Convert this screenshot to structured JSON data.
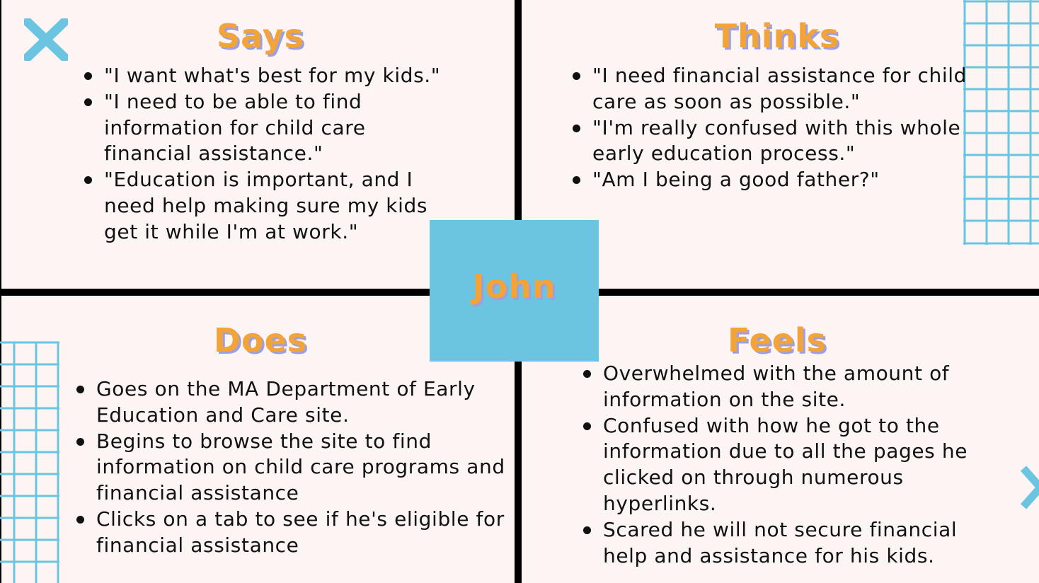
{
  "center": {
    "name": "John"
  },
  "quadrants": {
    "says": {
      "title": "Says",
      "items": [
        "\"I want what's best for my kids.\"",
        "\"I need to be able to find information for child care financial assistance.\"",
        "\"Education is important, and I need help making sure my kids get it while I'm at work.\""
      ]
    },
    "thinks": {
      "title": "Thinks",
      "items": [
        "\"I need financial assistance for child care as soon as possible.\"",
        "\"I'm really confused with this whole early education process.\"",
        "\"Am I being a good father?\""
      ]
    },
    "does": {
      "title": "Does",
      "items": [
        "Goes on the MA Department of Early Education and Care site.",
        "Begins to browse the site to find information on child care programs and financial assistance",
        "Clicks on a tab to see if he's eligible for financial assistance"
      ]
    },
    "feels": {
      "title": "Feels",
      "items": [
        "Overwhelmed with the amount of information on the site.",
        "Confused with how he got to the information due to all the pages he clicked on through numerous hyperlinks.",
        "Scared he will not secure financial help and assistance for his kids."
      ]
    }
  },
  "colors": {
    "background": "#fdf5f3",
    "title": "#f2a33a",
    "title_shadow": "#9c9fe0",
    "center_box": "#6bc5e1",
    "decoration": "#6bc5e1",
    "divider": "#000000"
  },
  "decorations": [
    "x-mark-icon",
    "grid-pattern-top-right",
    "grid-pattern-bottom-left",
    "chevron-right-icon"
  ]
}
